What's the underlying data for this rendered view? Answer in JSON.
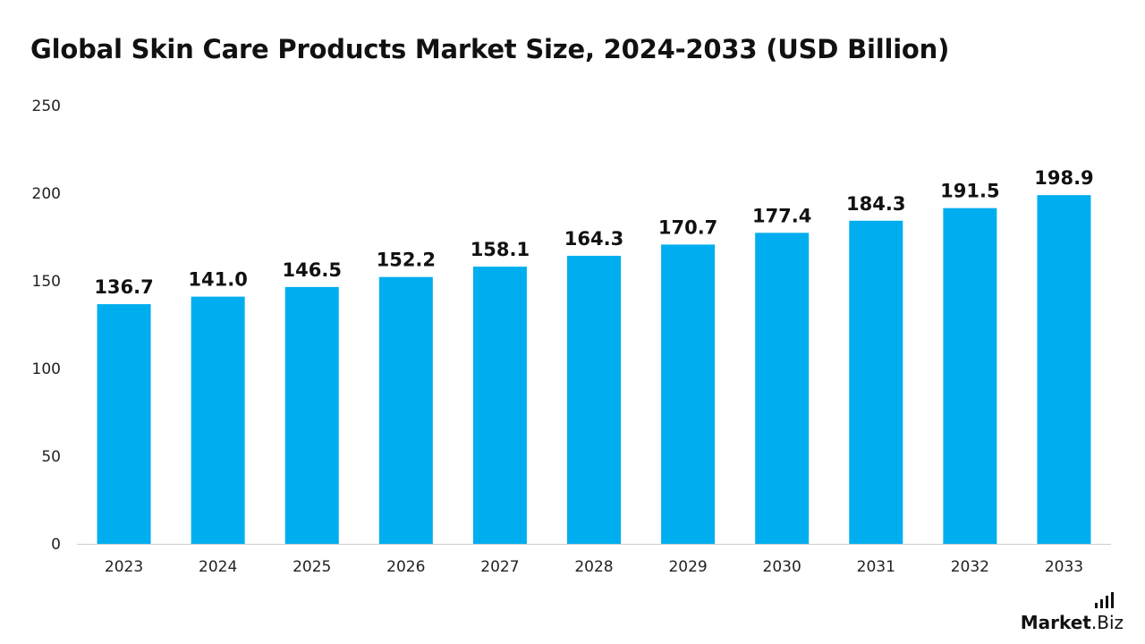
{
  "title": "Global Skin Care Products Market Size, 2024-2033 (USD Billion)",
  "brand": {
    "name_main": "Market",
    "name_sub": ".Biz"
  },
  "colors": {
    "bar": "#00AEEF",
    "axis": "#cccccc",
    "text": "#111111"
  },
  "chart_data": {
    "type": "bar",
    "title": "Global Skin Care Products Market Size, 2024-2033 (USD Billion)",
    "categories": [
      "2023",
      "2024",
      "2025",
      "2026",
      "2027",
      "2028",
      "2029",
      "2030",
      "2031",
      "2032",
      "2033"
    ],
    "values": [
      136.7,
      141.0,
      146.5,
      152.2,
      158.1,
      164.3,
      170.7,
      177.4,
      184.3,
      191.5,
      198.9
    ],
    "value_labels": [
      "136.7",
      "141.0",
      "146.5",
      "152.2",
      "158.1",
      "164.3",
      "170.7",
      "177.4",
      "184.3",
      "191.5",
      "198.9"
    ],
    "ylim": [
      0,
      250
    ],
    "yticks": [
      "0",
      "50",
      "100",
      "150",
      "200",
      "250"
    ],
    "xlabel": "",
    "ylabel": "",
    "grid": false,
    "legend": "none"
  }
}
